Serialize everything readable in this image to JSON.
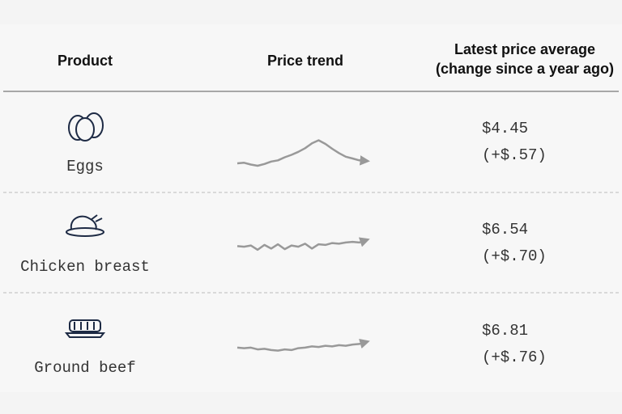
{
  "table": {
    "header": [
      "Product",
      "Price trend",
      "Latest price average\n(change since a year ago)"
    ],
    "rows": [
      {
        "product": "Eggs",
        "price": "$4.45",
        "change": "(+$.57)",
        "trend": [
          4.25,
          4.3,
          4.15,
          4.05,
          4.2,
          4.4,
          4.5,
          4.75,
          4.95,
          5.2,
          5.5,
          5.9,
          6.15,
          5.85,
          5.45,
          5.1,
          4.8,
          4.65,
          4.5,
          4.45
        ]
      },
      {
        "product": "Chicken breast",
        "price": "$6.54",
        "change": "(+$.70)",
        "trend": [
          6.05,
          6.0,
          6.1,
          5.75,
          6.15,
          5.85,
          6.2,
          5.8,
          6.1,
          6.0,
          6.25,
          5.85,
          6.2,
          6.15,
          6.3,
          6.25,
          6.35,
          6.4,
          6.35,
          6.54
        ]
      },
      {
        "product": "Ground beef",
        "price": "$6.81",
        "change": "(+$.76)",
        "trend": [
          6.35,
          6.3,
          6.35,
          6.2,
          6.25,
          6.15,
          6.1,
          6.2,
          6.15,
          6.3,
          6.35,
          6.45,
          6.4,
          6.5,
          6.45,
          6.55,
          6.5,
          6.6,
          6.65,
          6.81
        ]
      }
    ]
  }
}
